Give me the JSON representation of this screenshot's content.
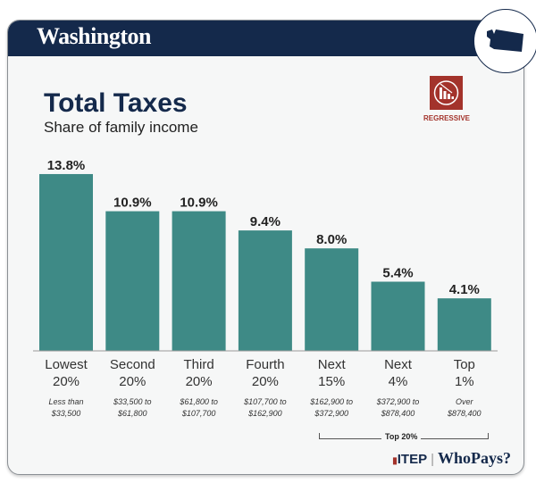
{
  "header": {
    "state": "Washington"
  },
  "badge": {
    "label": "REGRESSIVE",
    "color": "#a3332b",
    "icon": "regressive-chart-icon"
  },
  "footer": {
    "itep": "ITEP",
    "whopays": "WhoPays?"
  },
  "chart_data": {
    "type": "bar",
    "title": "Total Taxes",
    "subtitle": "Share of family income",
    "categories": [
      {
        "line1": "Lowest",
        "line2": "20%",
        "range1": "Less than",
        "range2": "$33,500"
      },
      {
        "line1": "Second",
        "line2": "20%",
        "range1": "$33,500 to",
        "range2": "$61,800"
      },
      {
        "line1": "Third",
        "line2": "20%",
        "range1": "$61,800 to",
        "range2": "$107,700"
      },
      {
        "line1": "Fourth",
        "line2": "20%",
        "range1": "$107,700 to",
        "range2": "$162,900"
      },
      {
        "line1": "Next",
        "line2": "15%",
        "range1": "$162,900 to",
        "range2": "$372,900"
      },
      {
        "line1": "Next",
        "line2": "4%",
        "range1": "$372,900 to",
        "range2": "$878,400"
      },
      {
        "line1": "Top",
        "line2": "1%",
        "range1": "Over",
        "range2": "$878,400"
      }
    ],
    "values": [
      13.8,
      10.9,
      10.9,
      9.4,
      8.0,
      5.4,
      4.1
    ],
    "labels": [
      "13.8%",
      "10.9%",
      "10.9%",
      "9.4%",
      "8.0%",
      "5.4%",
      "4.1%"
    ],
    "group_label": "Top 20%",
    "bar_color": "#3e8a86",
    "ylim": [
      0,
      14
    ]
  }
}
